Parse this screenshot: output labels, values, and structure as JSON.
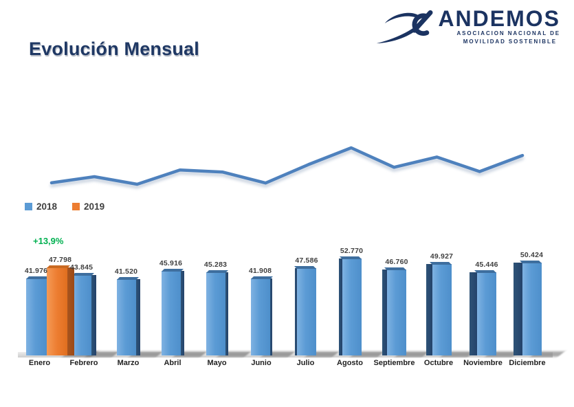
{
  "header": {
    "title": "Evolución Mensual",
    "logo": {
      "name": "ANDEMOS",
      "subtitle_line1": "ASOCIACION NACIONAL DE",
      "subtitle_line2": "MOVILIDAD SOSTENIBLE"
    }
  },
  "legend": {
    "items": [
      {
        "label": "2018",
        "color": "#5B9BD5"
      },
      {
        "label": "2019",
        "color": "#ED7D31"
      }
    ]
  },
  "colors": {
    "title_navy": "#1F3864",
    "logo_navy": "#1B3361",
    "line_blue": "#4E81BD",
    "bar_2018_front": "#5B9BD5",
    "bar_2018_side": "#24436B",
    "bar_2019_front": "#ED7D31",
    "bar_2019_side": "#9C4A16",
    "growth_green": "#00B050",
    "shadow_gray": "#8C8C8C"
  },
  "chart_data": [
    {
      "type": "line",
      "title": "",
      "categories": [
        "Enero",
        "Febrero",
        "Marzo",
        "Abril",
        "Mayo",
        "Junio",
        "Julio",
        "Agosto",
        "Septiembre",
        "Octubre",
        "Noviembre",
        "Diciembre"
      ],
      "series": [
        {
          "name": "2018",
          "values": [
            41976,
            43845,
            41520,
            45916,
            45283,
            41908,
            47586,
            52770,
            46760,
            49927,
            45446,
            50424
          ]
        }
      ],
      "ylim": [
        40000,
        54000
      ],
      "grid": false,
      "line_color": "#4E81BD",
      "legend_position": "below-left"
    },
    {
      "type": "bar",
      "title": "",
      "style": "3d",
      "categories": [
        "Enero",
        "Febrero",
        "Marzo",
        "Abril",
        "Mayo",
        "Junio",
        "Julio",
        "Agosto",
        "Septiembre",
        "Octubre",
        "Noviembre",
        "Diciembre"
      ],
      "series": [
        {
          "name": "2018",
          "values": [
            41976,
            43845,
            41520,
            45916,
            45283,
            41908,
            47586,
            52770,
            46760,
            49927,
            45446,
            50424
          ],
          "labels": [
            "41.976",
            "43.845",
            "41.520",
            "45.916",
            "45.283",
            "41.908",
            "47.586",
            "52.770",
            "46.760",
            "49.927",
            "45.446",
            "50.424"
          ]
        },
        {
          "name": "2019",
          "values": [
            47798,
            null,
            null,
            null,
            null,
            null,
            null,
            null,
            null,
            null,
            null,
            null
          ],
          "labels": [
            "47.798",
            null,
            null,
            null,
            null,
            null,
            null,
            null,
            null,
            null,
            null,
            null
          ]
        }
      ],
      "annotation": {
        "text": "+13,9%",
        "color": "#00B050"
      },
      "ylim": [
        0,
        56000
      ],
      "grid": false
    }
  ]
}
